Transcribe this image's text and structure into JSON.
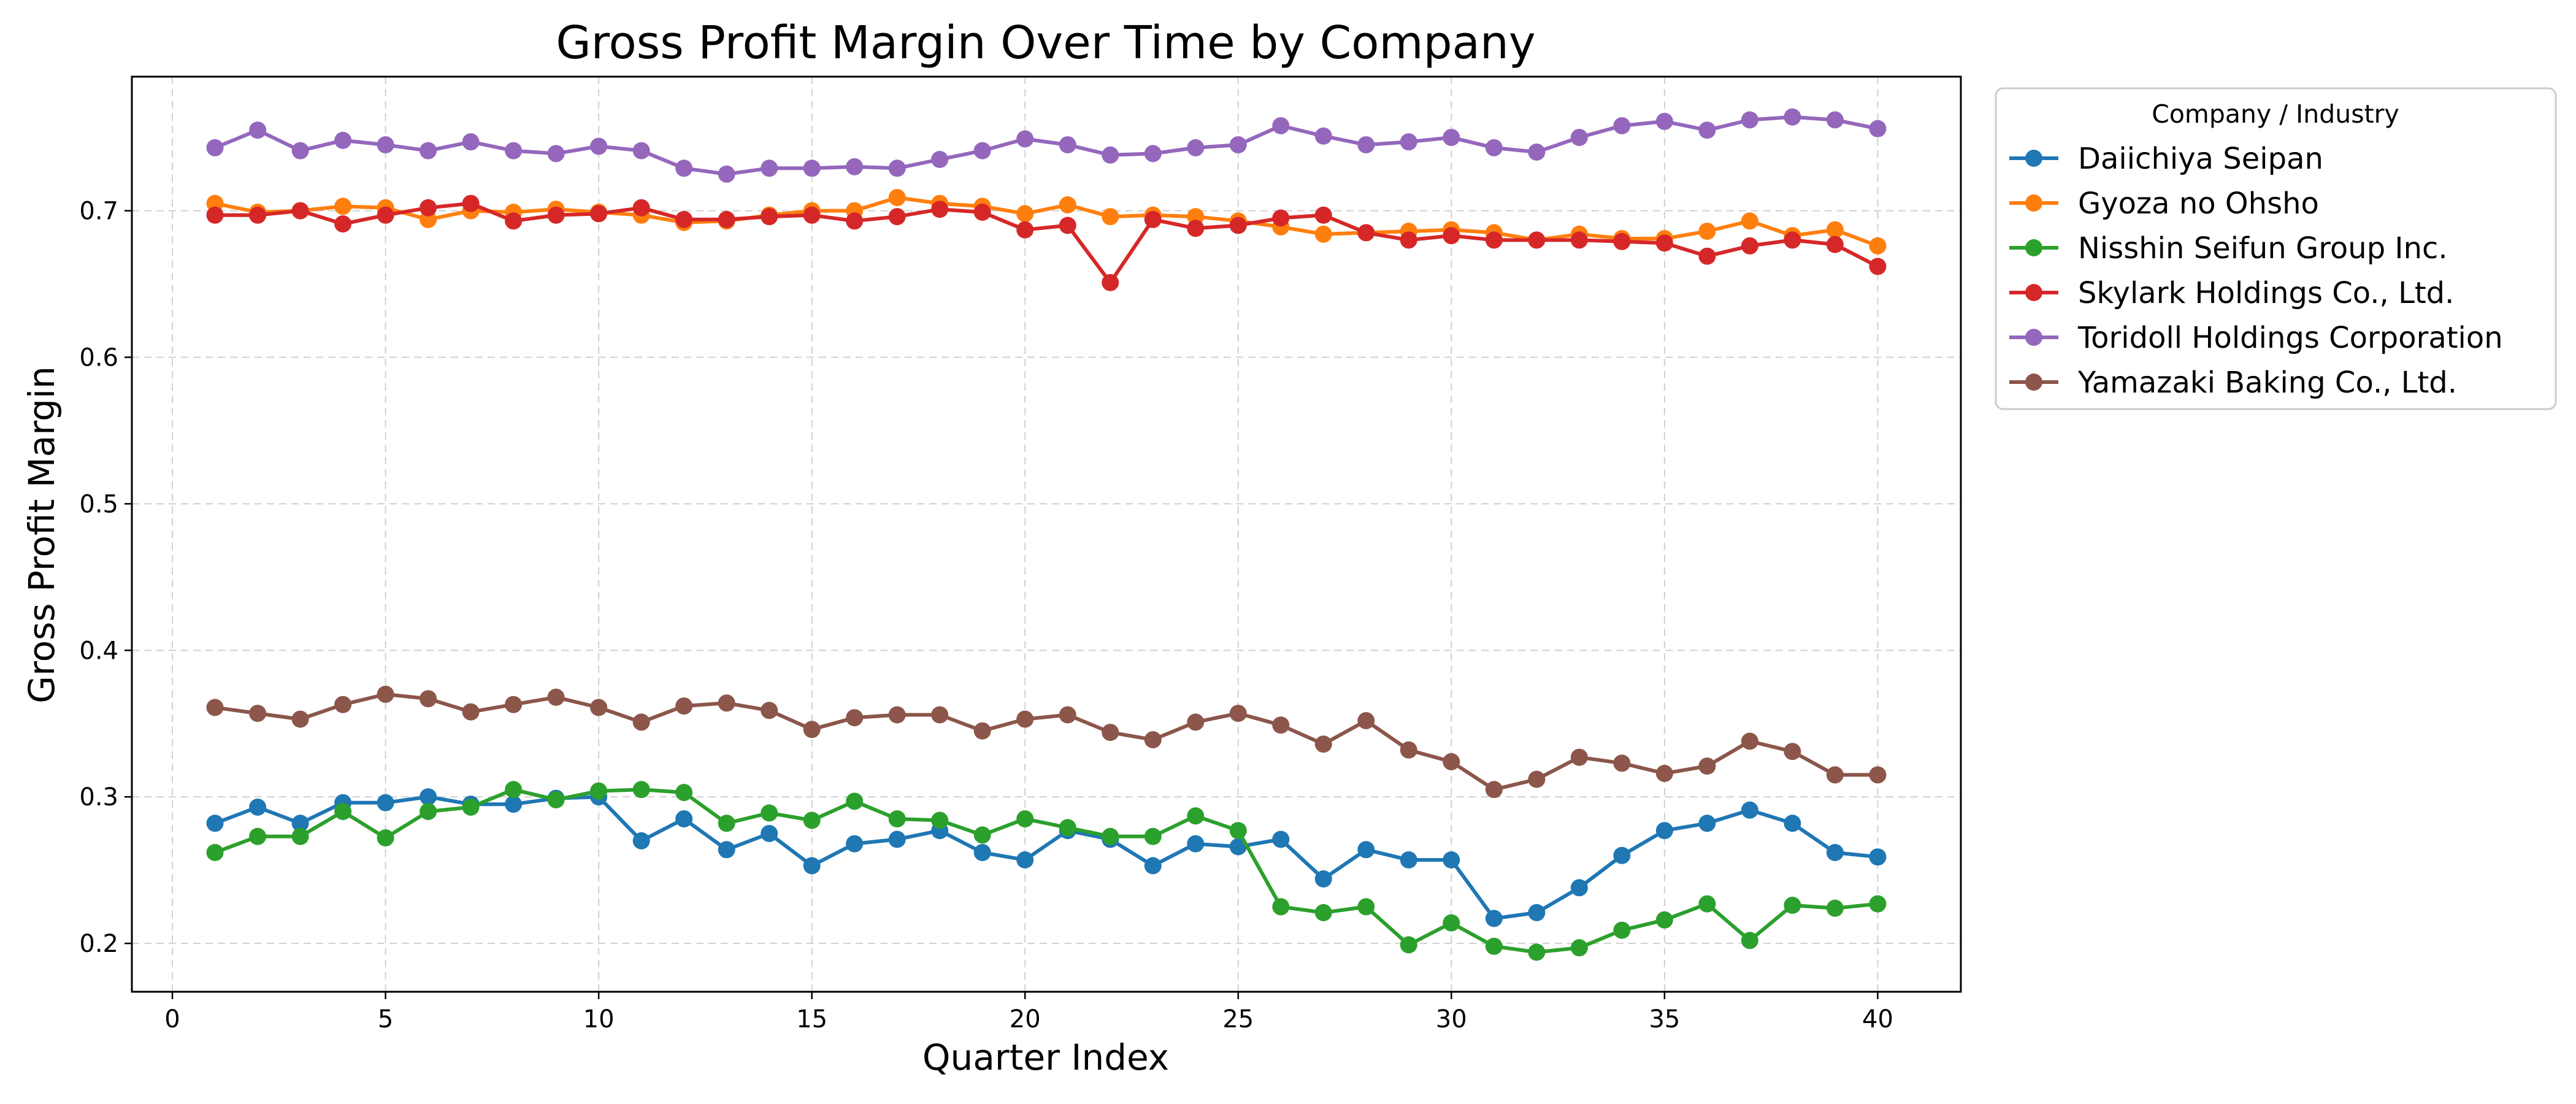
{
  "chart_data": {
    "type": "line",
    "title": "Gross Profit Margin Over Time by Company",
    "xlabel": "Quarter Index",
    "ylabel": "Gross Profit Margin",
    "xlim": [
      -0.95,
      41.95
    ],
    "ylim": [
      0.167,
      0.7915
    ],
    "xticks": [
      0,
      5,
      10,
      15,
      20,
      25,
      30,
      35,
      40
    ],
    "xtick_labels": [
      "0",
      "5",
      "10",
      "15",
      "20",
      "25",
      "30",
      "35",
      "40"
    ],
    "yticks": [
      0.2,
      0.3,
      0.4,
      0.5,
      0.6,
      0.7
    ],
    "ytick_labels": [
      "0.2",
      "0.3",
      "0.4",
      "0.5",
      "0.6",
      "0.7"
    ],
    "grid": true,
    "legend_title": "Company / Industry",
    "legend_position": "outside-right",
    "x": [
      1,
      2,
      3,
      4,
      5,
      6,
      7,
      8,
      9,
      10,
      11,
      12,
      13,
      14,
      15,
      16,
      17,
      18,
      19,
      20,
      21,
      22,
      23,
      24,
      25,
      26,
      27,
      28,
      29,
      30,
      31,
      32,
      33,
      34,
      35,
      36,
      37,
      38,
      39,
      40
    ],
    "series": [
      {
        "name": "Daiichiya Seipan",
        "color": "#1f77b4",
        "values": [
          0.282,
          0.293,
          0.282,
          0.296,
          0.296,
          0.3,
          0.295,
          0.295,
          0.299,
          0.3,
          0.27,
          0.285,
          0.264,
          0.275,
          0.253,
          0.268,
          0.271,
          0.277,
          0.262,
          0.257,
          0.277,
          0.271,
          0.253,
          0.268,
          0.266,
          0.271,
          0.244,
          0.264,
          0.257,
          0.257,
          0.217,
          0.221,
          0.238,
          0.26,
          0.277,
          0.282,
          0.291,
          0.282,
          0.262,
          0.259
        ]
      },
      {
        "name": "Gyoza no Ohsho",
        "color": "#ff7f0e",
        "values": [
          0.705,
          0.699,
          0.7,
          0.703,
          0.702,
          0.694,
          0.7,
          0.699,
          0.701,
          0.699,
          0.697,
          0.692,
          0.693,
          0.697,
          0.7,
          0.7,
          0.709,
          0.705,
          0.703,
          0.698,
          0.704,
          0.696,
          0.697,
          0.696,
          0.693,
          0.689,
          0.684,
          0.685,
          0.686,
          0.687,
          0.685,
          0.68,
          0.684,
          0.681,
          0.681,
          0.686,
          0.693,
          0.683,
          0.687,
          0.676
        ]
      },
      {
        "name": "Nisshin Seifun Group Inc.",
        "color": "#2ca02c",
        "values": [
          0.262,
          0.273,
          0.273,
          0.29,
          0.272,
          0.29,
          0.293,
          0.305,
          0.298,
          0.304,
          0.305,
          0.303,
          0.282,
          0.289,
          0.284,
          0.297,
          0.285,
          0.284,
          0.274,
          0.285,
          0.279,
          0.273,
          0.273,
          0.287,
          0.277,
          0.225,
          0.221,
          0.225,
          0.199,
          0.214,
          0.198,
          0.194,
          0.197,
          0.209,
          0.216,
          0.227,
          0.202,
          0.226,
          0.224,
          0.227
        ]
      },
      {
        "name": "Skylark Holdings Co., Ltd.",
        "color": "#d62728",
        "values": [
          0.697,
          0.697,
          0.7,
          0.691,
          0.697,
          0.702,
          0.705,
          0.693,
          0.697,
          0.698,
          0.702,
          0.694,
          0.694,
          0.696,
          0.697,
          0.693,
          0.696,
          0.701,
          0.699,
          0.687,
          0.69,
          0.651,
          0.694,
          0.688,
          0.69,
          0.695,
          0.697,
          0.685,
          0.68,
          0.683,
          0.68,
          0.68,
          0.68,
          0.679,
          0.678,
          0.669,
          0.676,
          0.68,
          0.677,
          0.662
        ]
      },
      {
        "name": "Toridoll Holdings Corporation",
        "color": "#9467bd",
        "values": [
          0.743,
          0.755,
          0.741,
          0.748,
          0.745,
          0.741,
          0.747,
          0.741,
          0.739,
          0.744,
          0.741,
          0.729,
          0.725,
          0.729,
          0.729,
          0.73,
          0.729,
          0.735,
          0.741,
          0.749,
          0.745,
          0.738,
          0.739,
          0.743,
          0.745,
          0.758,
          0.751,
          0.745,
          0.747,
          0.75,
          0.743,
          0.74,
          0.75,
          0.758,
          0.761,
          0.755,
          0.762,
          0.764,
          0.762,
          0.756
        ]
      },
      {
        "name": "Yamazaki Baking Co., Ltd.",
        "color": "#8c564b",
        "values": [
          0.361,
          0.357,
          0.353,
          0.363,
          0.37,
          0.367,
          0.358,
          0.363,
          0.368,
          0.361,
          0.351,
          0.362,
          0.364,
          0.359,
          0.346,
          0.354,
          0.356,
          0.356,
          0.345,
          0.353,
          0.356,
          0.344,
          0.339,
          0.351,
          0.357,
          0.349,
          0.336,
          0.352,
          0.332,
          0.324,
          0.305,
          0.312,
          0.327,
          0.323,
          0.316,
          0.321,
          0.338,
          0.331,
          0.315,
          0.315
        ]
      }
    ]
  }
}
